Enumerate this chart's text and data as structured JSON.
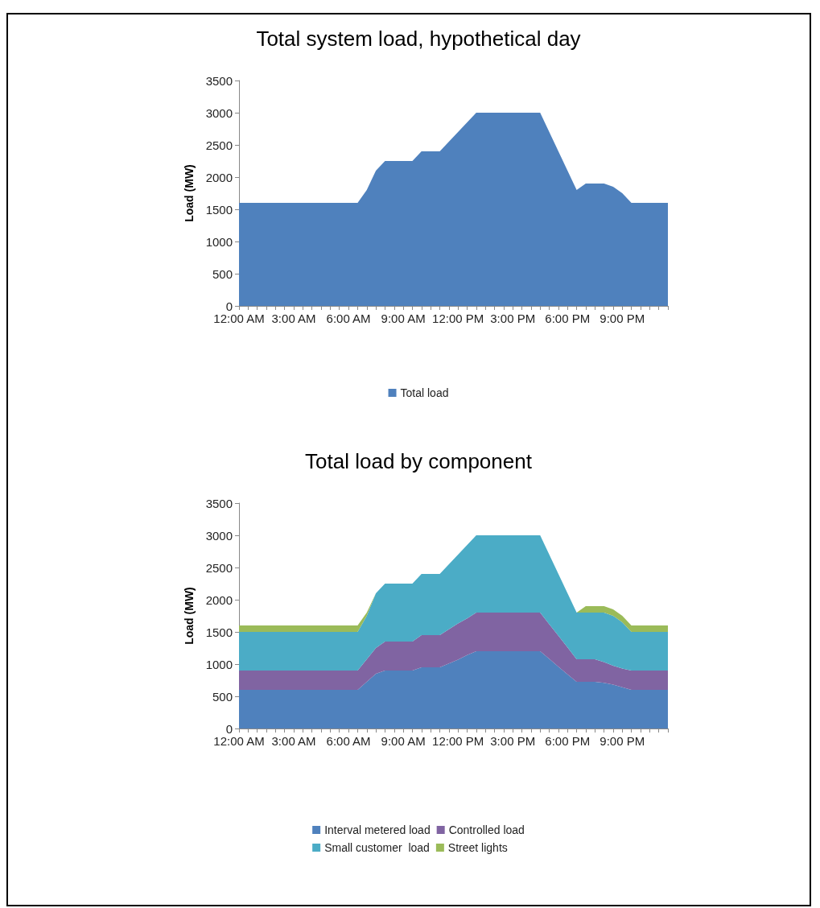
{
  "chart_data": [
    {
      "type": "area",
      "title": "Total system load, hypothetical day",
      "ylabel": "Load (MW)",
      "categories": [
        "12:00 AM",
        null,
        null,
        null,
        null,
        null,
        "3:00 AM",
        null,
        null,
        null,
        null,
        null,
        "6:00 AM",
        null,
        null,
        null,
        null,
        null,
        "9:00 AM",
        null,
        null,
        null,
        null,
        null,
        "12:00 PM",
        null,
        null,
        null,
        null,
        null,
        "3:00 PM",
        null,
        null,
        null,
        null,
        null,
        "6:00 PM",
        null,
        null,
        null,
        null,
        null,
        "9:00 PM",
        null,
        null,
        null,
        null,
        null
      ],
      "series": [
        {
          "name": "Total load",
          "color": "#4f81bd",
          "values": [
            1600,
            1600,
            1600,
            1600,
            1600,
            1600,
            1600,
            1600,
            1600,
            1600,
            1600,
            1600,
            1600,
            1600,
            1800,
            2100,
            2250,
            2250,
            2250,
            2250,
            2400,
            2400,
            2400,
            2550,
            2700,
            2850,
            3000,
            3000,
            3000,
            3000,
            3000,
            3000,
            3000,
            3000,
            2700,
            2400,
            2100,
            1800,
            1900,
            1900,
            1900,
            1850,
            1750,
            1600,
            1600,
            1600,
            1600,
            1600
          ]
        }
      ],
      "ylim": [
        0,
        3500
      ],
      "yticks": [
        0,
        500,
        1000,
        1500,
        2000,
        2500,
        3000,
        3500
      ],
      "legend": "bottom"
    },
    {
      "type": "area",
      "title": "Total load by component",
      "ylabel": "Load (MW)",
      "stacked": true,
      "categories": [
        "12:00 AM",
        null,
        null,
        null,
        null,
        null,
        "3:00 AM",
        null,
        null,
        null,
        null,
        null,
        "6:00 AM",
        null,
        null,
        null,
        null,
        null,
        "9:00 AM",
        null,
        null,
        null,
        null,
        null,
        "12:00 PM",
        null,
        null,
        null,
        null,
        null,
        "3:00 PM",
        null,
        null,
        null,
        null,
        null,
        "6:00 PM",
        null,
        null,
        null,
        null,
        null,
        "9:00 PM",
        null,
        null,
        null,
        null,
        null
      ],
      "series": [
        {
          "name": "Interval metered load",
          "color": "#4f81bd",
          "values": [
            600,
            600,
            600,
            600,
            600,
            600,
            600,
            600,
            600,
            600,
            600,
            600,
            600,
            600,
            725,
            850,
            900,
            900,
            900,
            900,
            950,
            950,
            950,
            1010,
            1070,
            1140,
            1200,
            1200,
            1200,
            1200,
            1200,
            1200,
            1200,
            1200,
            1080,
            960,
            840,
            725,
            725,
            725,
            710,
            680,
            640,
            600,
            600,
            600,
            600,
            600
          ]
        },
        {
          "name": "Controlled load",
          "color": "#8064a2",
          "values": [
            300,
            300,
            300,
            300,
            300,
            300,
            300,
            300,
            300,
            300,
            300,
            300,
            300,
            300,
            350,
            400,
            450,
            450,
            450,
            450,
            500,
            500,
            500,
            530,
            560,
            570,
            600,
            600,
            600,
            600,
            600,
            600,
            600,
            600,
            540,
            480,
            420,
            350,
            350,
            350,
            320,
            295,
            290,
            300,
            300,
            300,
            300,
            300
          ]
        },
        {
          "name": "Small customer  load",
          "color": "#4bacc6",
          "values": [
            600,
            600,
            600,
            600,
            600,
            600,
            600,
            600,
            600,
            600,
            600,
            600,
            600,
            600,
            675,
            850,
            900,
            900,
            900,
            900,
            950,
            950,
            950,
            1010,
            1070,
            1140,
            1200,
            1200,
            1200,
            1200,
            1200,
            1200,
            1200,
            1200,
            1080,
            960,
            840,
            725,
            725,
            725,
            770,
            775,
            720,
            600,
            600,
            600,
            600,
            600
          ]
        },
        {
          "name": "Street lights",
          "color": "#9bbb59",
          "values": [
            100,
            100,
            100,
            100,
            100,
            100,
            100,
            100,
            100,
            100,
            100,
            100,
            100,
            100,
            50,
            0,
            0,
            0,
            0,
            0,
            0,
            0,
            0,
            0,
            0,
            0,
            0,
            0,
            0,
            0,
            0,
            0,
            0,
            0,
            0,
            0,
            0,
            0,
            100,
            100,
            100,
            100,
            100,
            100,
            100,
            100,
            100,
            100
          ]
        }
      ],
      "ylim": [
        0,
        3500
      ],
      "yticks": [
        0,
        500,
        1000,
        1500,
        2000,
        2500,
        3000,
        3500
      ],
      "legend": "bottom"
    }
  ]
}
